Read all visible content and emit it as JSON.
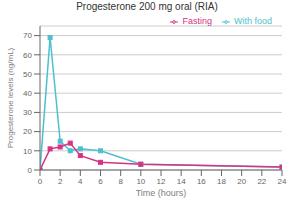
{
  "chart_data": {
    "type": "line",
    "title": "Progesterone 200 mg oral (RIA)",
    "xlabel": "Time (hours)",
    "ylabel": "Progesterone levels (ng/mL)",
    "x": [
      0,
      1,
      2,
      3,
      4,
      6,
      10,
      24
    ],
    "series": [
      {
        "name": "With food",
        "color": "#4dbfcf",
        "marker": "square",
        "values": [
          0,
          69,
          15,
          10,
          11,
          10,
          3,
          1.5
        ]
      },
      {
        "name": "Fasting",
        "color": "#d63384",
        "marker": "square",
        "values": [
          0,
          11,
          12,
          14,
          7.5,
          4,
          3,
          1.5
        ]
      }
    ],
    "xlim": [
      0,
      24
    ],
    "ylim": [
      0,
      75
    ],
    "xticks": [
      0,
      2,
      4,
      6,
      8,
      10,
      12,
      14,
      16,
      18,
      20,
      22,
      24
    ],
    "yticks": [
      0,
      10,
      20,
      30,
      40,
      50,
      60,
      70
    ],
    "grid": true,
    "legend": "upper right"
  }
}
